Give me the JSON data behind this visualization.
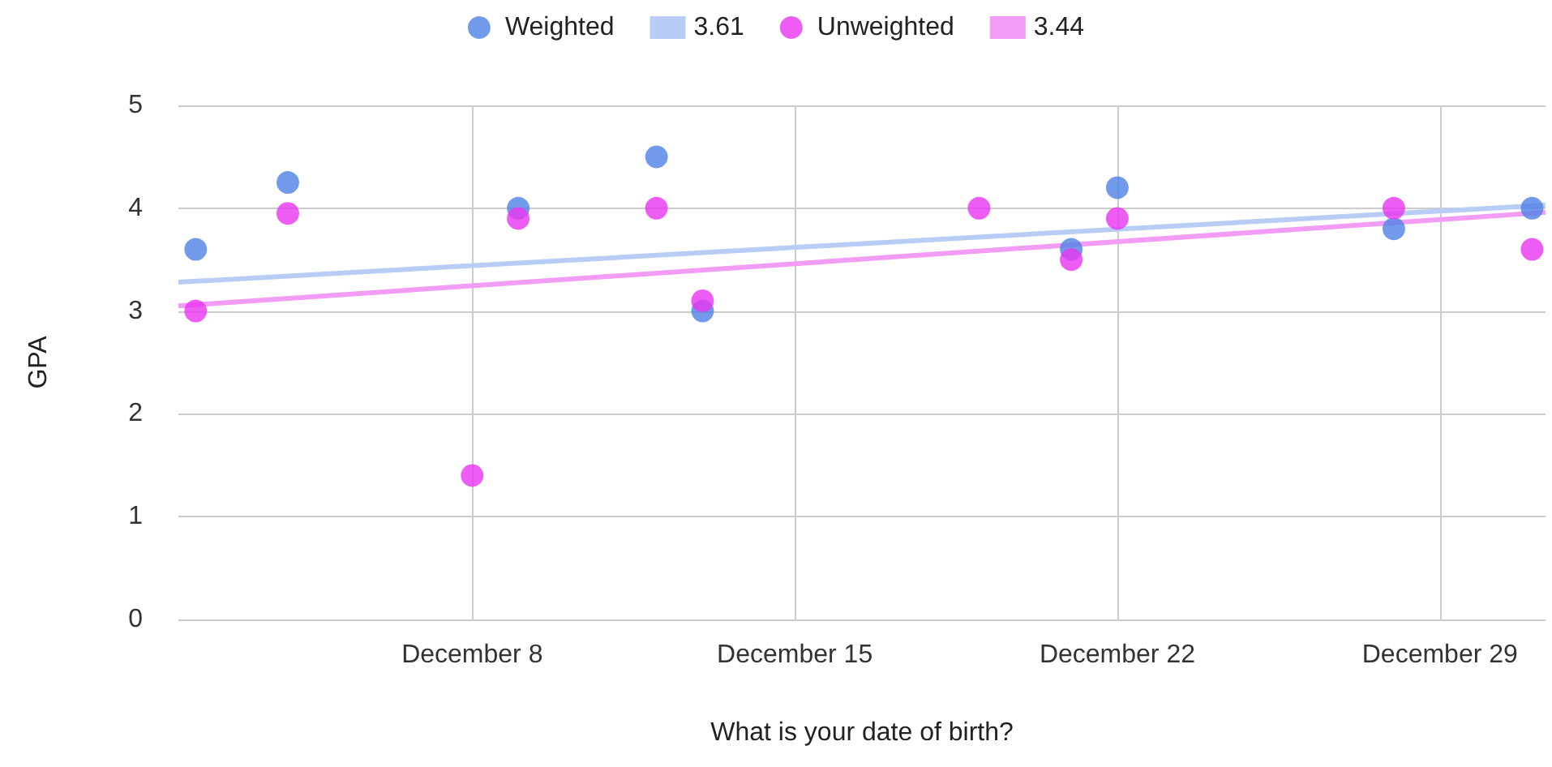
{
  "chart_data": {
    "type": "scatter",
    "xlabel": "What is your date of birth?",
    "ylabel": "GPA",
    "x": [
      "--12-02",
      "--12-04",
      "--12-08",
      "--12-09",
      "--12-12",
      "--12-13",
      "--12-19",
      "--12-21",
      "--12-22",
      "--12-28",
      "--12-31"
    ],
    "series": [
      {
        "name": "Weighted",
        "color": "#4f81e5",
        "values": [
          3.6,
          4.25,
          null,
          4.0,
          4.5,
          3.0,
          null,
          3.6,
          4.2,
          3.8,
          4.0
        ]
      },
      {
        "name": "3.61",
        "type": "line",
        "marker": "none",
        "color": "#b7cdf5",
        "x": [
          "--12-01T15:00",
          "--12-31T07:00"
        ],
        "values": [
          3.28,
          4.03
        ]
      },
      {
        "name": "Unweighted",
        "color": "#e935f0",
        "values": [
          3.0,
          3.95,
          1.4,
          3.9,
          4.0,
          3.1,
          4.0,
          3.5,
          3.9,
          4.0,
          3.6
        ]
      },
      {
        "name": "3.44",
        "type": "line",
        "marker": "none",
        "color": "#f29cf5",
        "x": [
          "--12-01T15:00",
          "--12-31T07:00"
        ],
        "values": [
          3.05,
          3.96
        ]
      }
    ],
    "xlim": [
      "--12-01T15:00",
      "--12-31T07:00"
    ],
    "xticks": [
      {
        "value": "--12-08",
        "label": "December 8"
      },
      {
        "value": "--12-15",
        "label": "December 15"
      },
      {
        "value": "--12-22",
        "label": "December 22"
      },
      {
        "value": "--12-29",
        "label": "December 29"
      }
    ],
    "ylim": [
      0,
      5
    ],
    "yticks": [
      0,
      1,
      2,
      3,
      4,
      5
    ],
    "grid": true,
    "legend": "top",
    "marker": "circle"
  }
}
